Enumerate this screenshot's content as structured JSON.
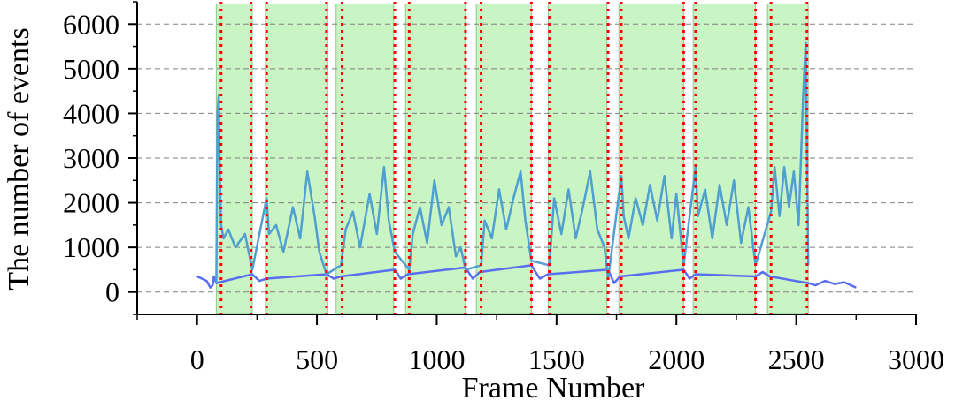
{
  "chart_data": {
    "type": "line",
    "xlabel": "Frame Number",
    "ylabel": "The number of events",
    "xlim": [
      -250,
      3000
    ],
    "ylim": [
      -500,
      6500
    ],
    "x_ticks": [
      0,
      500,
      1000,
      1500,
      2000,
      2500,
      3000
    ],
    "x_tick_labels": [
      "0",
      "500",
      "1000",
      "1500",
      "2000",
      "2500",
      "3000"
    ],
    "y_ticks": [
      0,
      1000,
      2000,
      3000,
      4000,
      5000,
      6000
    ],
    "y_tick_labels": [
      "0",
      "1000",
      "2000",
      "3000",
      "4000",
      "5000",
      "6000"
    ],
    "grid": "horizontal dashed",
    "colors": {
      "signal_line": "#4f9fd0",
      "idle_line": "#5a6ff0",
      "highlight_fill": "#c8f5c3",
      "highlight_border": "#8fc98a",
      "divider": "#ff0000",
      "grid": "#808080"
    },
    "highlight_regions": [
      [
        80,
        230
      ],
      [
        285,
        545
      ],
      [
        580,
        820
      ],
      [
        870,
        1120
      ],
      [
        1165,
        1395
      ],
      [
        1465,
        1710
      ],
      [
        1760,
        2030
      ],
      [
        2070,
        2330
      ],
      [
        2380,
        2550
      ]
    ],
    "event_boundaries": [
      100,
      225,
      290,
      540,
      605,
      825,
      885,
      1120,
      1185,
      1395,
      1470,
      1715,
      1770,
      2030,
      2080,
      2330,
      2395,
      2545
    ],
    "idle_series": {
      "name": "",
      "x": [
        0,
        20,
        40,
        55,
        65,
        70,
        80,
        230,
        260,
        290,
        540,
        570,
        600,
        825,
        850,
        880,
        1120,
        1150,
        1180,
        1395,
        1430,
        1465,
        1715,
        1740,
        1765,
        2030,
        2055,
        2080,
        2330,
        2360,
        2390,
        2550,
        2580,
        2620,
        2660,
        2700,
        2750
      ],
      "y": [
        350,
        300,
        250,
        100,
        150,
        350,
        200,
        400,
        250,
        300,
        400,
        300,
        350,
        500,
        300,
        400,
        550,
        300,
        450,
        600,
        300,
        400,
        500,
        200,
        350,
        500,
        300,
        400,
        350,
        450,
        350,
        200,
        150,
        250,
        180,
        220,
        100
      ]
    },
    "signal_series": {
      "name": "",
      "x": [
        80,
        85,
        90,
        95,
        100,
        110,
        130,
        160,
        200,
        230,
        290,
        300,
        330,
        360,
        400,
        430,
        460,
        490,
        510,
        540,
        600,
        620,
        650,
        680,
        720,
        750,
        780,
        800,
        825,
        885,
        900,
        930,
        960,
        990,
        1020,
        1050,
        1080,
        1100,
        1120,
        1185,
        1200,
        1230,
        1260,
        1290,
        1320,
        1350,
        1370,
        1395,
        1470,
        1490,
        1520,
        1550,
        1580,
        1610,
        1640,
        1670,
        1700,
        1715,
        1770,
        1780,
        1800,
        1830,
        1860,
        1890,
        1920,
        1950,
        1980,
        2000,
        2030,
        2080,
        2090,
        2120,
        2150,
        2180,
        2210,
        2240,
        2270,
        2300,
        2330,
        2395,
        2410,
        2430,
        2450,
        2470,
        2490,
        2510,
        2530,
        2540,
        2550
      ],
      "y": [
        200,
        4000,
        4400,
        2500,
        1500,
        1200,
        1400,
        1000,
        1300,
        500,
        2100,
        1300,
        1500,
        900,
        1900,
        1200,
        2700,
        1700,
        900,
        400,
        600,
        1400,
        1800,
        1000,
        2200,
        1300,
        2800,
        1600,
        900,
        500,
        1300,
        1900,
        1100,
        2500,
        1500,
        1900,
        800,
        1000,
        500,
        600,
        1600,
        1200,
        2300,
        1400,
        2100,
        2700,
        1600,
        700,
        600,
        2100,
        1300,
        2300,
        1200,
        1900,
        2700,
        1400,
        1000,
        300,
        2600,
        1700,
        1200,
        2100,
        1500,
        2400,
        1600,
        2600,
        1200,
        2200,
        600,
        2800,
        1700,
        2300,
        1200,
        2400,
        1500,
        2500,
        1100,
        1900,
        600,
        1800,
        2800,
        1700,
        2800,
        1900,
        2700,
        1500,
        4500,
        5600,
        600
      ]
    }
  }
}
